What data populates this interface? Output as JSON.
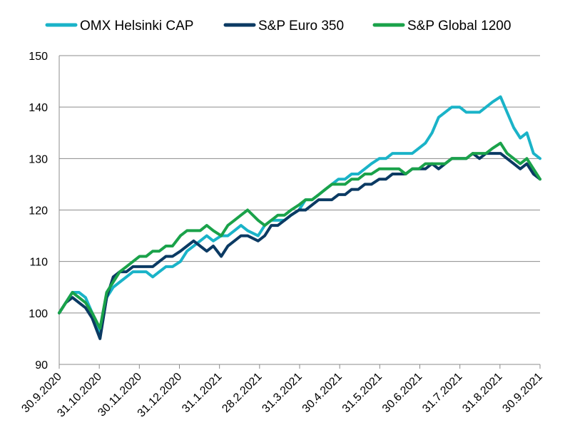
{
  "chart_data": {
    "type": "line",
    "title": "",
    "xlabel": "",
    "ylabel": "",
    "ylim": [
      90,
      150
    ],
    "yticks": [
      "90",
      "100",
      "110",
      "120",
      "130",
      "140",
      "150"
    ],
    "xtick_labels": [
      "30.9.2020",
      "31.10.2020",
      "30.11.2020",
      "31.12.2020",
      "31.1.2021",
      "28.2.2021",
      "31.3.2021",
      "30.4.2021",
      "31.5.2021",
      "30.6.2021",
      "31.7.2021",
      "31.8.2021",
      "30.9.2021"
    ],
    "grid": "horizontal",
    "legend_position": "top",
    "series": [
      {
        "name": "OMX Helsinki CAP",
        "color": "#1ab3c8",
        "x": [
          "30.9.2020",
          "5.10.2020",
          "10.10.2020",
          "15.10.2020",
          "20.10.2020",
          "25.10.2020",
          "31.10.2020",
          "5.11.2020",
          "10.11.2020",
          "15.11.2020",
          "20.11.2020",
          "25.11.2020",
          "30.11.2020",
          "5.12.2020",
          "10.12.2020",
          "15.12.2020",
          "20.12.2020",
          "25.12.2020",
          "31.12.2020",
          "5.1.2021",
          "10.1.2021",
          "15.1.2021",
          "20.1.2021",
          "25.1.2021",
          "31.1.2021",
          "5.2.2021",
          "10.2.2021",
          "15.2.2021",
          "20.2.2021",
          "28.2.2021",
          "5.3.2021",
          "10.3.2021",
          "15.3.2021",
          "20.3.2021",
          "25.3.2021",
          "31.3.2021",
          "5.4.2021",
          "10.4.2021",
          "15.4.2021",
          "20.4.2021",
          "25.4.2021",
          "30.4.2021",
          "5.5.2021",
          "10.5.2021",
          "15.5.2021",
          "20.5.2021",
          "25.5.2021",
          "31.5.2021",
          "5.6.2021",
          "10.6.2021",
          "15.6.2021",
          "20.6.2021",
          "25.6.2021",
          "30.6.2021",
          "5.7.2021",
          "10.7.2021",
          "15.7.2021",
          "20.7.2021",
          "25.7.2021",
          "31.7.2021",
          "5.8.2021",
          "10.8.2021",
          "15.8.2021",
          "20.8.2021",
          "25.8.2021",
          "31.8.2021",
          "5.9.2021",
          "10.9.2021",
          "15.9.2021",
          "20.9.2021",
          "25.9.2021",
          "30.9.2021"
        ],
        "values": [
          100,
          102,
          104,
          104,
          103,
          100,
          96,
          103,
          105,
          106,
          107,
          108,
          108,
          108,
          107,
          108,
          109,
          109,
          110,
          112,
          113,
          114,
          115,
          114,
          115,
          115,
          116,
          117,
          116,
          115,
          117,
          118,
          118,
          118,
          119,
          120,
          122,
          122,
          123,
          124,
          125,
          126,
          126,
          127,
          127,
          128,
          129,
          130,
          130,
          131,
          131,
          131,
          131,
          132,
          133,
          135,
          138,
          139,
          140,
          140,
          139,
          139,
          139,
          140,
          141,
          142,
          139,
          136,
          134,
          135,
          131,
          130
        ]
      },
      {
        "name": "S&P Euro 350",
        "color": "#0b3a63",
        "x": [
          "30.9.2020",
          "5.10.2020",
          "10.10.2020",
          "15.10.2020",
          "20.10.2020",
          "25.10.2020",
          "31.10.2020",
          "5.11.2020",
          "10.11.2020",
          "15.11.2020",
          "20.11.2020",
          "25.11.2020",
          "30.11.2020",
          "5.12.2020",
          "10.12.2020",
          "15.12.2020",
          "20.12.2020",
          "25.12.2020",
          "31.12.2020",
          "5.1.2021",
          "10.1.2021",
          "15.1.2021",
          "20.1.2021",
          "25.1.2021",
          "31.1.2021",
          "5.2.2021",
          "10.2.2021",
          "15.2.2021",
          "20.2.2021",
          "28.2.2021",
          "5.3.2021",
          "10.3.2021",
          "15.3.2021",
          "20.3.2021",
          "25.3.2021",
          "31.3.2021",
          "5.4.2021",
          "10.4.2021",
          "15.4.2021",
          "20.4.2021",
          "25.4.2021",
          "30.4.2021",
          "5.5.2021",
          "10.5.2021",
          "15.5.2021",
          "20.5.2021",
          "25.5.2021",
          "31.5.2021",
          "5.6.2021",
          "10.6.2021",
          "15.6.2021",
          "20.6.2021",
          "25.6.2021",
          "30.6.2021",
          "5.7.2021",
          "10.7.2021",
          "15.7.2021",
          "20.7.2021",
          "25.7.2021",
          "31.7.2021",
          "5.8.2021",
          "10.8.2021",
          "15.8.2021",
          "20.8.2021",
          "25.8.2021",
          "31.8.2021",
          "5.9.2021",
          "10.9.2021",
          "15.9.2021",
          "20.9.2021",
          "25.9.2021",
          "30.9.2021"
        ],
        "values": [
          100,
          102,
          103,
          102,
          101,
          99,
          95,
          103,
          107,
          108,
          108,
          109,
          109,
          109,
          109,
          110,
          111,
          111,
          112,
          113,
          114,
          113,
          112,
          113,
          111,
          113,
          114,
          115,
          115,
          114,
          115,
          117,
          117,
          118,
          119,
          120,
          120,
          121,
          122,
          122,
          122,
          123,
          123,
          124,
          124,
          125,
          125,
          126,
          126,
          127,
          127,
          127,
          128,
          128,
          128,
          129,
          128,
          129,
          130,
          130,
          130,
          131,
          130,
          131,
          131,
          131,
          130,
          129,
          128,
          129,
          127,
          126
        ]
      },
      {
        "name": "S&P Global 1200",
        "color": "#1aa24a",
        "x": [
          "30.9.2020",
          "5.10.2020",
          "10.10.2020",
          "15.10.2020",
          "20.10.2020",
          "25.10.2020",
          "31.10.2020",
          "5.11.2020",
          "10.11.2020",
          "15.11.2020",
          "20.11.2020",
          "25.11.2020",
          "30.11.2020",
          "5.12.2020",
          "10.12.2020",
          "15.12.2020",
          "20.12.2020",
          "25.12.2020",
          "31.12.2020",
          "5.1.2021",
          "10.1.2021",
          "15.1.2021",
          "20.1.2021",
          "25.1.2021",
          "31.1.2021",
          "5.2.2021",
          "10.2.2021",
          "15.2.2021",
          "20.2.2021",
          "28.2.2021",
          "5.3.2021",
          "10.3.2021",
          "15.3.2021",
          "20.3.2021",
          "25.3.2021",
          "31.3.2021",
          "5.4.2021",
          "10.4.2021",
          "15.4.2021",
          "20.4.2021",
          "25.4.2021",
          "30.4.2021",
          "5.5.2021",
          "10.5.2021",
          "15.5.2021",
          "20.5.2021",
          "25.5.2021",
          "31.5.2021",
          "5.6.2021",
          "10.6.2021",
          "15.6.2021",
          "20.6.2021",
          "25.6.2021",
          "30.6.2021",
          "5.7.2021",
          "10.7.2021",
          "15.7.2021",
          "20.7.2021",
          "25.7.2021",
          "31.7.2021",
          "5.8.2021",
          "10.8.2021",
          "15.8.2021",
          "20.8.2021",
          "25.8.2021",
          "31.8.2021",
          "5.9.2021",
          "10.9.2021",
          "15.9.2021",
          "20.9.2021",
          "25.9.2021",
          "30.9.2021"
        ],
        "values": [
          100,
          102,
          104,
          103,
          102,
          100,
          97,
          104,
          106,
          108,
          109,
          110,
          111,
          111,
          112,
          112,
          113,
          113,
          115,
          116,
          116,
          116,
          117,
          116,
          115,
          117,
          118,
          119,
          120,
          118,
          117,
          118,
          119,
          119,
          120,
          121,
          122,
          122,
          123,
          124,
          125,
          125,
          125,
          126,
          126,
          127,
          127,
          128,
          128,
          128,
          128,
          127,
          128,
          128,
          129,
          129,
          129,
          129,
          130,
          130,
          130,
          131,
          131,
          131,
          132,
          133,
          131,
          130,
          129,
          130,
          128,
          126
        ]
      }
    ]
  }
}
